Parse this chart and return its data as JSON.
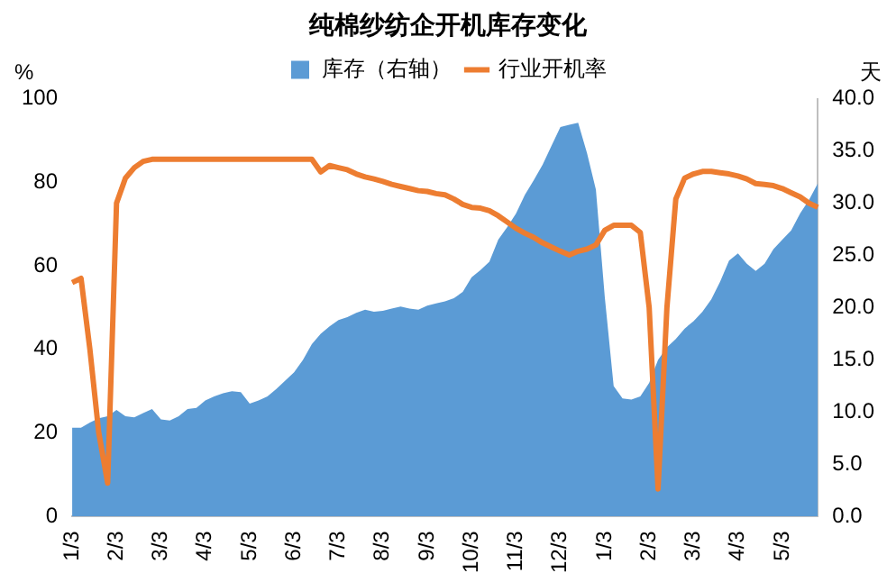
{
  "chart_data": {
    "type": "line",
    "title": "纯棉纱纺企开机库存变化",
    "ylabel": "%",
    "y2label": "天",
    "categories": [
      "1/3",
      null,
      null,
      null,
      null,
      "2/3",
      null,
      null,
      null,
      null,
      "3/3",
      null,
      null,
      null,
      null,
      "4/3",
      null,
      null,
      null,
      null,
      "5/3",
      null,
      null,
      null,
      null,
      "6/3",
      null,
      null,
      null,
      null,
      "7/3",
      null,
      null,
      null,
      null,
      "8/3",
      null,
      null,
      null,
      null,
      "9/3",
      null,
      null,
      null,
      null,
      "10/3",
      null,
      null,
      null,
      null,
      "11/3",
      null,
      null,
      null,
      null,
      "12/3",
      null,
      null,
      null,
      null,
      "1/3",
      null,
      null,
      null,
      null,
      "2/3",
      null,
      null,
      null,
      null,
      "3/3",
      null,
      null,
      null,
      null,
      "4/3",
      null,
      null,
      null,
      null,
      "5/3",
      null,
      null,
      null,
      null
    ],
    "series": [
      {
        "name": "库存（右轴）",
        "type": "area",
        "axis": "y2",
        "color": "#5b9bd5",
        "values": [
          8.5,
          8.5,
          9.0,
          9.4,
          9.6,
          10.2,
          9.6,
          9.5,
          9.9,
          10.3,
          9.3,
          9.2,
          9.6,
          10.3,
          10.4,
          11.1,
          11.5,
          11.8,
          12,
          11.9,
          10.8,
          11.1,
          11.5,
          12.2,
          13,
          13.8,
          15,
          16.5,
          17.5,
          18.2,
          18.8,
          19.1,
          19.5,
          19.8,
          19.6,
          19.7,
          19.9,
          20.1,
          19.9,
          19.8,
          20.2,
          20.4,
          20.6,
          20.9,
          21.5,
          22.9,
          23.6,
          24.4,
          26.5,
          27.7,
          29,
          30.8,
          32.2,
          33.7,
          35.5,
          37.3,
          37.5,
          37.7,
          34.8,
          31.3,
          21,
          12.5,
          11.3,
          11.2,
          11.5,
          12.8,
          15,
          16.2,
          17,
          18,
          18.7,
          19.6,
          20.8,
          22.5,
          24.5,
          25.2,
          24.2,
          23.5,
          24.2,
          25.6,
          26.5,
          27.4,
          29,
          30.3,
          31.9
        ]
      },
      {
        "name": "行业开机率",
        "type": "line",
        "color": "#ed7d31",
        "values": [
          56,
          57,
          40,
          20,
          8,
          75,
          81,
          83.5,
          85,
          85.5,
          85.5,
          85.5,
          85.5,
          85.5,
          85.5,
          85.5,
          85.5,
          85.5,
          85.5,
          85.5,
          85.5,
          85.5,
          85.5,
          85.5,
          85.5,
          85.5,
          85.5,
          85.5,
          82.5,
          84,
          83.5,
          83,
          82,
          81.3,
          80.8,
          80.2,
          79.5,
          79,
          78.5,
          78,
          77.8,
          77.3,
          77,
          76,
          74.7,
          74,
          73.8,
          73.2,
          72,
          70.5,
          69,
          67.8,
          66.8,
          65.5,
          64.5,
          63.5,
          62.6,
          63.5,
          64,
          65,
          68.5,
          69.7,
          69.7,
          69.7,
          68,
          50,
          6.6,
          50,
          76,
          81,
          82,
          82.6,
          82.6,
          82.3,
          82,
          81.5,
          80.8,
          79.7,
          79.5,
          79.2,
          78.5,
          77.5,
          76.5,
          75,
          74
        ]
      }
    ],
    "ylim": [
      0,
      100
    ],
    "yticks": [
      0,
      20,
      40,
      60,
      80,
      100
    ],
    "y2lim": [
      0,
      40
    ],
    "y2ticks": [
      {
        "value": 0,
        "label": "0.0"
      },
      {
        "value": 5,
        "label": "5.0"
      },
      {
        "value": 10,
        "label": "10.0"
      },
      {
        "value": 15,
        "label": "15.0"
      },
      {
        "value": 20,
        "label": "20.0"
      },
      {
        "value": 25,
        "label": "25.0"
      },
      {
        "value": 30,
        "label": "30.0"
      },
      {
        "value": 35,
        "label": "35.0"
      },
      {
        "value": 40,
        "label": "40.0"
      }
    ],
    "grid": false,
    "legend": "top",
    "marker": "none",
    "line_style": "solid"
  }
}
